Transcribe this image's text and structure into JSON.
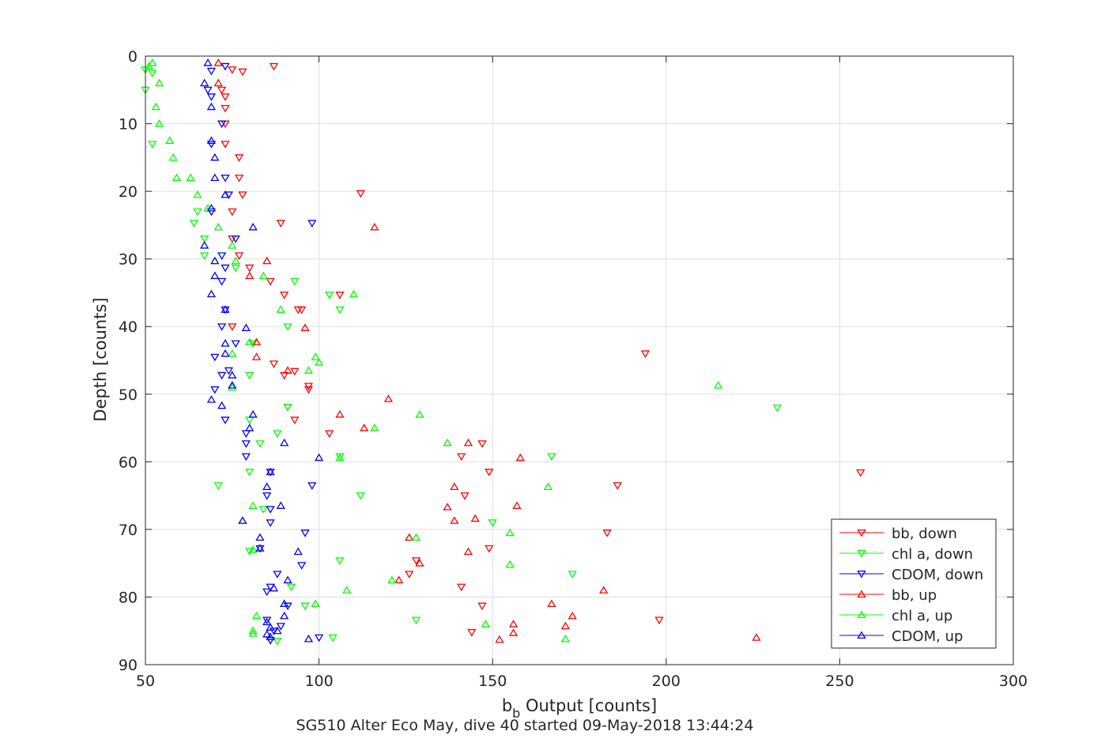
{
  "chart_data": {
    "type": "scatter",
    "title": "SG510 Alter Eco May, dive 40 started 09-May-2018 13:44:24",
    "xlabel_main": "b",
    "xlabel_sub": "b",
    "xlabel_rest": " Output [counts]",
    "ylabel": "Depth [counts]",
    "xlim": [
      50,
      300
    ],
    "ylim": [
      0,
      90
    ],
    "y_reversed": true,
    "grid": true,
    "legend_position": "bottom-right",
    "x_ticks": [
      "50",
      "100",
      "150",
      "200",
      "250",
      "300"
    ],
    "y_ticks": [
      "0",
      "10",
      "20",
      "30",
      "40",
      "50",
      "60",
      "70",
      "80",
      "90"
    ],
    "series": [
      {
        "name": "bb, down",
        "color": "#ff0000",
        "marker": "triangle-down",
        "points": [
          [
            87,
            1.5
          ],
          [
            75,
            2
          ],
          [
            78,
            2.3
          ],
          [
            72,
            5
          ],
          [
            73,
            6
          ],
          [
            73,
            7.7
          ],
          [
            73,
            10
          ],
          [
            73,
            13
          ],
          [
            77,
            15
          ],
          [
            77,
            18
          ],
          [
            78,
            20.5
          ],
          [
            75,
            23
          ],
          [
            112,
            20.3
          ],
          [
            89,
            24.7
          ],
          [
            75,
            27
          ],
          [
            77,
            29.5
          ],
          [
            80,
            31.3
          ],
          [
            86,
            33.3
          ],
          [
            90,
            35.3
          ],
          [
            106,
            35.3
          ],
          [
            94,
            37.5
          ],
          [
            95,
            37.5
          ],
          [
            75,
            40
          ],
          [
            194,
            44
          ],
          [
            87,
            45.5
          ],
          [
            90,
            47.2
          ],
          [
            93,
            46.6
          ],
          [
            97,
            48.8
          ],
          [
            97,
            49.3
          ],
          [
            91,
            51.9
          ],
          [
            93,
            53.8
          ],
          [
            103,
            55.8
          ],
          [
            147,
            57.3
          ],
          [
            141,
            59.2
          ],
          [
            149,
            61.5
          ],
          [
            256,
            61.6
          ],
          [
            186,
            63.5
          ],
          [
            142,
            65
          ],
          [
            183,
            70.5
          ],
          [
            149,
            72.8
          ],
          [
            128,
            74.6
          ],
          [
            126,
            76.6
          ],
          [
            141,
            78.5
          ],
          [
            147,
            81.3
          ],
          [
            198,
            83.4
          ],
          [
            144,
            85.2
          ]
        ]
      },
      {
        "name": "chl a, down",
        "color": "#00ff00",
        "marker": "triangle-down",
        "points": [
          [
            50,
            2
          ],
          [
            52,
            2.5
          ],
          [
            50,
            5
          ],
          [
            52,
            13
          ],
          [
            65,
            23
          ],
          [
            64,
            24.7
          ],
          [
            67,
            27
          ],
          [
            67,
            29.5
          ],
          [
            76,
            31.3
          ],
          [
            93,
            33.3
          ],
          [
            103,
            35.3
          ],
          [
            106,
            37.5
          ],
          [
            91,
            40
          ],
          [
            81,
            42.5
          ],
          [
            80,
            47.2
          ],
          [
            91,
            51.9
          ],
          [
            80,
            53.8
          ],
          [
            88,
            55.8
          ],
          [
            83,
            57.3
          ],
          [
            106,
            59.2
          ],
          [
            167,
            59.2
          ],
          [
            80,
            61.5
          ],
          [
            71,
            63.5
          ],
          [
            112,
            65
          ],
          [
            84,
            67
          ],
          [
            150,
            69
          ],
          [
            96,
            81.3
          ],
          [
            106,
            74.6
          ],
          [
            128,
            83.4
          ],
          [
            104,
            86
          ],
          [
            88,
            86.5
          ],
          [
            173,
            76.6
          ],
          [
            232,
            52
          ],
          [
            92,
            78.5
          ],
          [
            80,
            73.2
          ]
        ]
      },
      {
        "name": "CDOM, down",
        "color": "#0000ff",
        "marker": "triangle-down",
        "points": [
          [
            73,
            1.5
          ],
          [
            69,
            2.2
          ],
          [
            68,
            5
          ],
          [
            69,
            6
          ],
          [
            72,
            10
          ],
          [
            69,
            13
          ],
          [
            73,
            18
          ],
          [
            74,
            20.5
          ],
          [
            69,
            23
          ],
          [
            98,
            24.7
          ],
          [
            76,
            27
          ],
          [
            72,
            29.5
          ],
          [
            73,
            31.3
          ],
          [
            72,
            33.3
          ],
          [
            73,
            37.5
          ],
          [
            72,
            40
          ],
          [
            76,
            42.5
          ],
          [
            70,
            44.5
          ],
          [
            72,
            47.2
          ],
          [
            74,
            46.5
          ],
          [
            70,
            49.3
          ],
          [
            73,
            53.8
          ],
          [
            79,
            55.8
          ],
          [
            79,
            57.3
          ],
          [
            79,
            59.2
          ],
          [
            86,
            61.5
          ],
          [
            85,
            65
          ],
          [
            98,
            63.5
          ],
          [
            86,
            67
          ],
          [
            86,
            69
          ],
          [
            96,
            70.5
          ],
          [
            83,
            72.8
          ],
          [
            95,
            75.3
          ],
          [
            88,
            76.6
          ],
          [
            86,
            78.5
          ],
          [
            85,
            79.2
          ],
          [
            91,
            81.3
          ],
          [
            85,
            83.4
          ],
          [
            89,
            84.3
          ],
          [
            87,
            85
          ],
          [
            86,
            86.4
          ],
          [
            100,
            86
          ]
        ]
      },
      {
        "name": "bb, up",
        "color": "#ff0000",
        "marker": "triangle-up",
        "points": [
          [
            71,
            1
          ],
          [
            71,
            4
          ],
          [
            116,
            25.3
          ],
          [
            85,
            30.3
          ],
          [
            80,
            32.5
          ],
          [
            91,
            46.5
          ],
          [
            96,
            40.2
          ],
          [
            82,
            42.3
          ],
          [
            82,
            44.5
          ],
          [
            120,
            50.7
          ],
          [
            106,
            53
          ],
          [
            113,
            55
          ],
          [
            143,
            57.2
          ],
          [
            158,
            59.4
          ],
          [
            139,
            63.7
          ],
          [
            137,
            66.7
          ],
          [
            157,
            66.5
          ],
          [
            139,
            68.7
          ],
          [
            145,
            68.4
          ],
          [
            126,
            71.2
          ],
          [
            143,
            73.3
          ],
          [
            129,
            75
          ],
          [
            123,
            77.5
          ],
          [
            182,
            79
          ],
          [
            167,
            81
          ],
          [
            173,
            82.8
          ],
          [
            171,
            84.3
          ],
          [
            156,
            84
          ],
          [
            156,
            85.3
          ],
          [
            152,
            86.3
          ],
          [
            226,
            86
          ]
        ]
      },
      {
        "name": "chl a, up",
        "color": "#00ff00",
        "marker": "triangle-up",
        "points": [
          [
            52,
            1
          ],
          [
            51,
            1.5
          ],
          [
            54,
            4
          ],
          [
            53,
            7.5
          ],
          [
            54,
            10
          ],
          [
            57,
            12.5
          ],
          [
            58,
            15
          ],
          [
            59,
            18
          ],
          [
            63,
            18
          ],
          [
            65,
            20.5
          ],
          [
            68,
            22.5
          ],
          [
            71,
            25.3
          ],
          [
            75,
            28
          ],
          [
            76,
            30.3
          ],
          [
            84,
            32.5
          ],
          [
            110,
            35.2
          ],
          [
            89,
            37.5
          ],
          [
            80,
            42.3
          ],
          [
            75,
            44
          ],
          [
            99,
            44.5
          ],
          [
            100,
            45.3
          ],
          [
            97,
            46.5
          ],
          [
            75,
            49
          ],
          [
            215,
            48.7
          ],
          [
            129,
            53
          ],
          [
            116,
            55
          ],
          [
            137,
            57.2
          ],
          [
            106,
            59.4
          ],
          [
            166,
            63.7
          ],
          [
            81,
            66.5
          ],
          [
            78,
            68.7
          ],
          [
            155,
            70.5
          ],
          [
            128,
            71.2
          ],
          [
            81,
            73
          ],
          [
            155,
            75.2
          ],
          [
            121,
            77.5
          ],
          [
            108,
            79
          ],
          [
            99,
            81
          ],
          [
            82,
            82.8
          ],
          [
            148,
            84
          ],
          [
            81,
            85
          ],
          [
            81,
            85.4
          ],
          [
            171,
            86.2
          ]
        ]
      },
      {
        "name": "CDOM, up",
        "color": "#0000ff",
        "marker": "triangle-up",
        "points": [
          [
            68,
            1
          ],
          [
            67,
            4
          ],
          [
            69,
            7.5
          ],
          [
            69,
            12.5
          ],
          [
            70,
            15
          ],
          [
            70,
            18
          ],
          [
            73,
            20.5
          ],
          [
            69,
            22.5
          ],
          [
            81,
            25.3
          ],
          [
            67,
            28
          ],
          [
            70,
            30.3
          ],
          [
            70,
            32.5
          ],
          [
            69,
            35.2
          ],
          [
            73,
            37.5
          ],
          [
            79,
            40.2
          ],
          [
            73,
            42.5
          ],
          [
            73,
            44
          ],
          [
            75,
            47.2
          ],
          [
            75,
            48.7
          ],
          [
            69,
            50.8
          ],
          [
            72,
            51.7
          ],
          [
            81,
            53
          ],
          [
            80,
            55
          ],
          [
            90,
            57.2
          ],
          [
            100,
            59.4
          ],
          [
            86,
            61.5
          ],
          [
            85,
            63.7
          ],
          [
            89,
            66.5
          ],
          [
            78,
            68.7
          ],
          [
            83,
            71.2
          ],
          [
            83,
            72.8
          ],
          [
            94,
            73.3
          ],
          [
            91,
            77.5
          ],
          [
            87,
            78.7
          ],
          [
            90,
            81
          ],
          [
            90,
            82.8
          ],
          [
            85,
            83.7
          ],
          [
            86,
            84.5
          ],
          [
            88,
            85
          ],
          [
            85,
            85.5
          ],
          [
            97,
            86.2
          ],
          [
            86,
            85.9
          ]
        ]
      }
    ]
  }
}
